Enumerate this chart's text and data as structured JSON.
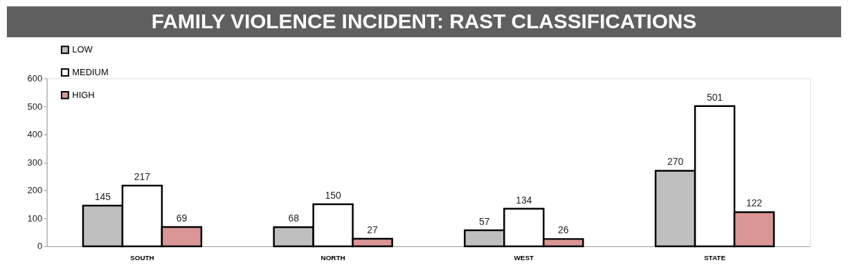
{
  "chart_data": {
    "type": "bar",
    "title": "FAMILY VIOLENCE INCIDENT: RAST CLASSIFICATIONS",
    "categories": [
      "SOUTH",
      "NORTH",
      "WEST",
      "STATE"
    ],
    "series": [
      {
        "name": "LOW",
        "color": "#bfbfbf",
        "values": [
          145,
          68,
          57,
          270
        ]
      },
      {
        "name": "MEDIUM",
        "color": "#ffffff",
        "values": [
          217,
          150,
          134,
          501
        ]
      },
      {
        "name": "HIGH",
        "color": "#d99694",
        "values": [
          69,
          27,
          26,
          122
        ]
      }
    ],
    "ylim": [
      0,
      600
    ],
    "yticks": [
      0,
      100,
      200,
      300,
      400,
      500,
      600
    ],
    "grid": false,
    "legend": "top left",
    "data_labels": true
  }
}
